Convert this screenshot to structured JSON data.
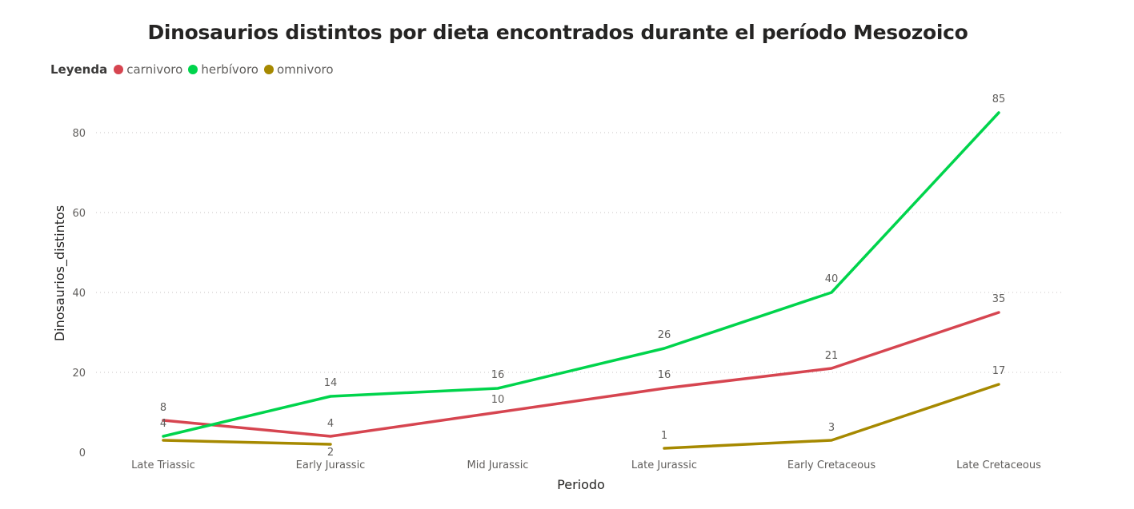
{
  "chart_data": {
    "type": "line",
    "title": "Dinosaurios distintos por dieta encontrados durante el período Mesozoico",
    "legend_title": "Leyenda",
    "legend_position": "top-left",
    "xlabel": "Periodo",
    "ylabel": "Dinosaurios_distintos",
    "categories": [
      "Late Triassic",
      "Early Jurassic",
      "Mid Jurassic",
      "Late Jurassic",
      "Early Cretaceous",
      "Late Cretaceous"
    ],
    "ylim": [
      0,
      90
    ],
    "yticks": [
      0,
      20,
      40,
      60,
      80
    ],
    "grid": "horizontal dotted",
    "series": [
      {
        "name": "carnivoro",
        "color": "#d64550",
        "values": [
          8,
          4,
          10,
          16,
          21,
          35
        ]
      },
      {
        "name": "herbívoro",
        "color": "#00d44c",
        "values": [
          4,
          14,
          16,
          26,
          40,
          85
        ]
      },
      {
        "name": "omnivoro",
        "color": "#a68900",
        "values": [
          3,
          2,
          null,
          1,
          3,
          17
        ]
      }
    ],
    "data_labels": [
      {
        "series": 0,
        "index": 0,
        "text": "8"
      },
      {
        "series": 0,
        "index": 1,
        "text": "4"
      },
      {
        "series": 0,
        "index": 2,
        "text": "10"
      },
      {
        "series": 0,
        "index": 3,
        "text": "16"
      },
      {
        "series": 0,
        "index": 4,
        "text": "21"
      },
      {
        "series": 0,
        "index": 5,
        "text": "35"
      },
      {
        "series": 1,
        "index": 0,
        "text": "4"
      },
      {
        "series": 1,
        "index": 1,
        "text": "14"
      },
      {
        "series": 1,
        "index": 2,
        "text": "16"
      },
      {
        "series": 1,
        "index": 3,
        "text": "26"
      },
      {
        "series": 1,
        "index": 4,
        "text": "40"
      },
      {
        "series": 1,
        "index": 5,
        "text": "85"
      },
      {
        "series": 2,
        "index": 1,
        "text": "2"
      },
      {
        "series": 2,
        "index": 3,
        "text": "1"
      },
      {
        "series": 2,
        "index": 4,
        "text": "3"
      },
      {
        "series": 2,
        "index": 5,
        "text": "17"
      }
    ]
  }
}
